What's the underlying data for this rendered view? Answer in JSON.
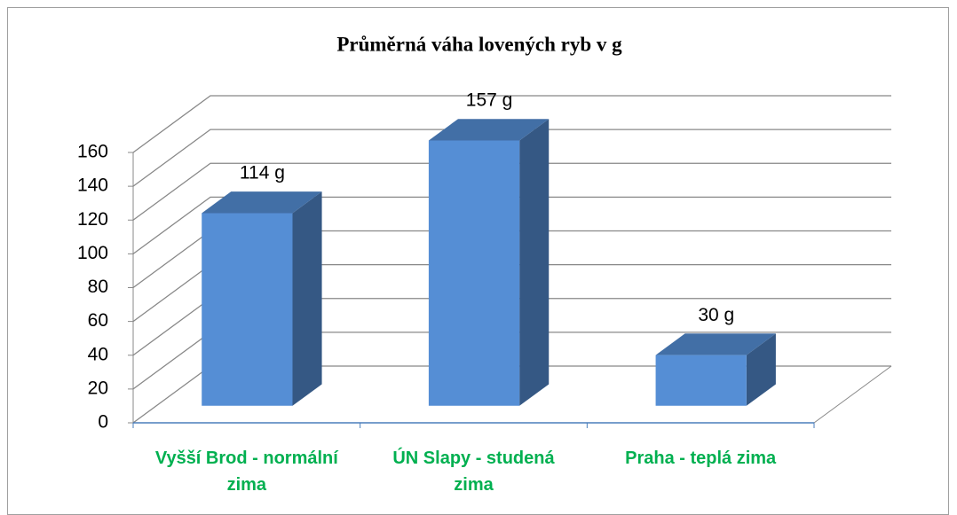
{
  "chart_data": {
    "type": "bar3d",
    "title": "Průměrná váha lovených ryb v g",
    "categories": [
      "Vyšší Brod - normální zima",
      "ÚN Slapy - studená zima",
      "Praha - teplá zima"
    ],
    "values": [
      114,
      157,
      30
    ],
    "value_labels": [
      "114 g",
      "157 g",
      "30 g"
    ],
    "color": "#558ed5",
    "category_color": "#00b050",
    "ylim": [
      0,
      160
    ],
    "yticks": [
      0,
      20,
      40,
      60,
      80,
      100,
      120,
      140,
      160
    ],
    "grid": true
  }
}
